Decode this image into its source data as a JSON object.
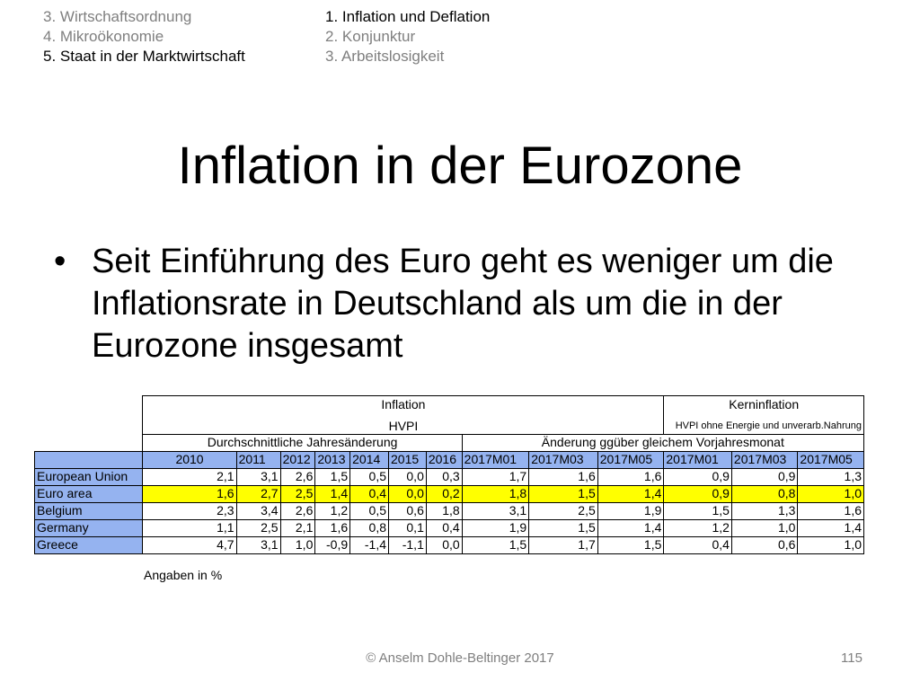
{
  "nav": {
    "left": [
      "3. Wirtschaftsordnung",
      "4. Mikroökonomie",
      "5. Staat in der Marktwirtschaft"
    ],
    "right": [
      "1. Inflation und Deflation",
      "2. Konjunktur",
      "3. Arbeitslosigkeit"
    ]
  },
  "title": "Inflation in der Eurozone",
  "bullet": "Seit Einführung des Euro geht es weniger um die Inflationsrate in Deutschland als um die in der Eurozone insgesamt",
  "table": {
    "group_inflation": "Inflation",
    "group_kern": "Kerninflation",
    "hvpi": "HVPI",
    "hvpi_ohne": "HVPI ohne Energie und unverarb.Nahrung",
    "durchschnitt": "Durchschnittliche Jahresänderung",
    "aenderung": "Änderung ggüber gleichem Vorjahresmonat",
    "years": [
      "2010",
      "2011",
      "2012",
      "2013",
      "2014",
      "2015",
      "2016",
      "2017M01",
      "2017M03",
      "2017M05",
      "2017M01",
      "2017M03",
      "2017M05"
    ],
    "rows": [
      {
        "name": "European Union",
        "values": [
          "2,1",
          "3,1",
          "2,6",
          "1,5",
          "0,5",
          "0,0",
          "0,3",
          "1,7",
          "1,6",
          "1,6",
          "0,9",
          "0,9",
          "1,3"
        ]
      },
      {
        "name": "Euro area",
        "values": [
          "1,6",
          "2,7",
          "2,5",
          "1,4",
          "0,4",
          "0,0",
          "0,2",
          "1,8",
          "1,5",
          "1,4",
          "0,9",
          "0,8",
          "1,0"
        ]
      },
      {
        "name": "Belgium",
        "values": [
          "2,3",
          "3,4",
          "2,6",
          "1,2",
          "0,5",
          "0,6",
          "1,8",
          "3,1",
          "2,5",
          "1,9",
          "1,5",
          "1,3",
          "1,6"
        ]
      },
      {
        "name": "Germany",
        "values": [
          "1,1",
          "2,5",
          "2,1",
          "1,6",
          "0,8",
          "0,1",
          "0,4",
          "1,9",
          "1,5",
          "1,4",
          "1,2",
          "1,0",
          "1,4"
        ]
      },
      {
        "name": "Greece",
        "values": [
          "4,7",
          "3,1",
          "1,0",
          "-0,9",
          "-1,4",
          "-1,1",
          "0,0",
          "1,5",
          "1,7",
          "1,5",
          "0,4",
          "0,6",
          "1,0"
        ]
      }
    ],
    "note": "Angaben in %"
  },
  "footer": {
    "copyright": "© Anselm Dohle-Beltinger 2017",
    "page": "115"
  },
  "colors": {
    "header_blue": "#95b3f0",
    "highlight_yellow": "#ffff00",
    "muted_gray": "#7f7f7f"
  }
}
